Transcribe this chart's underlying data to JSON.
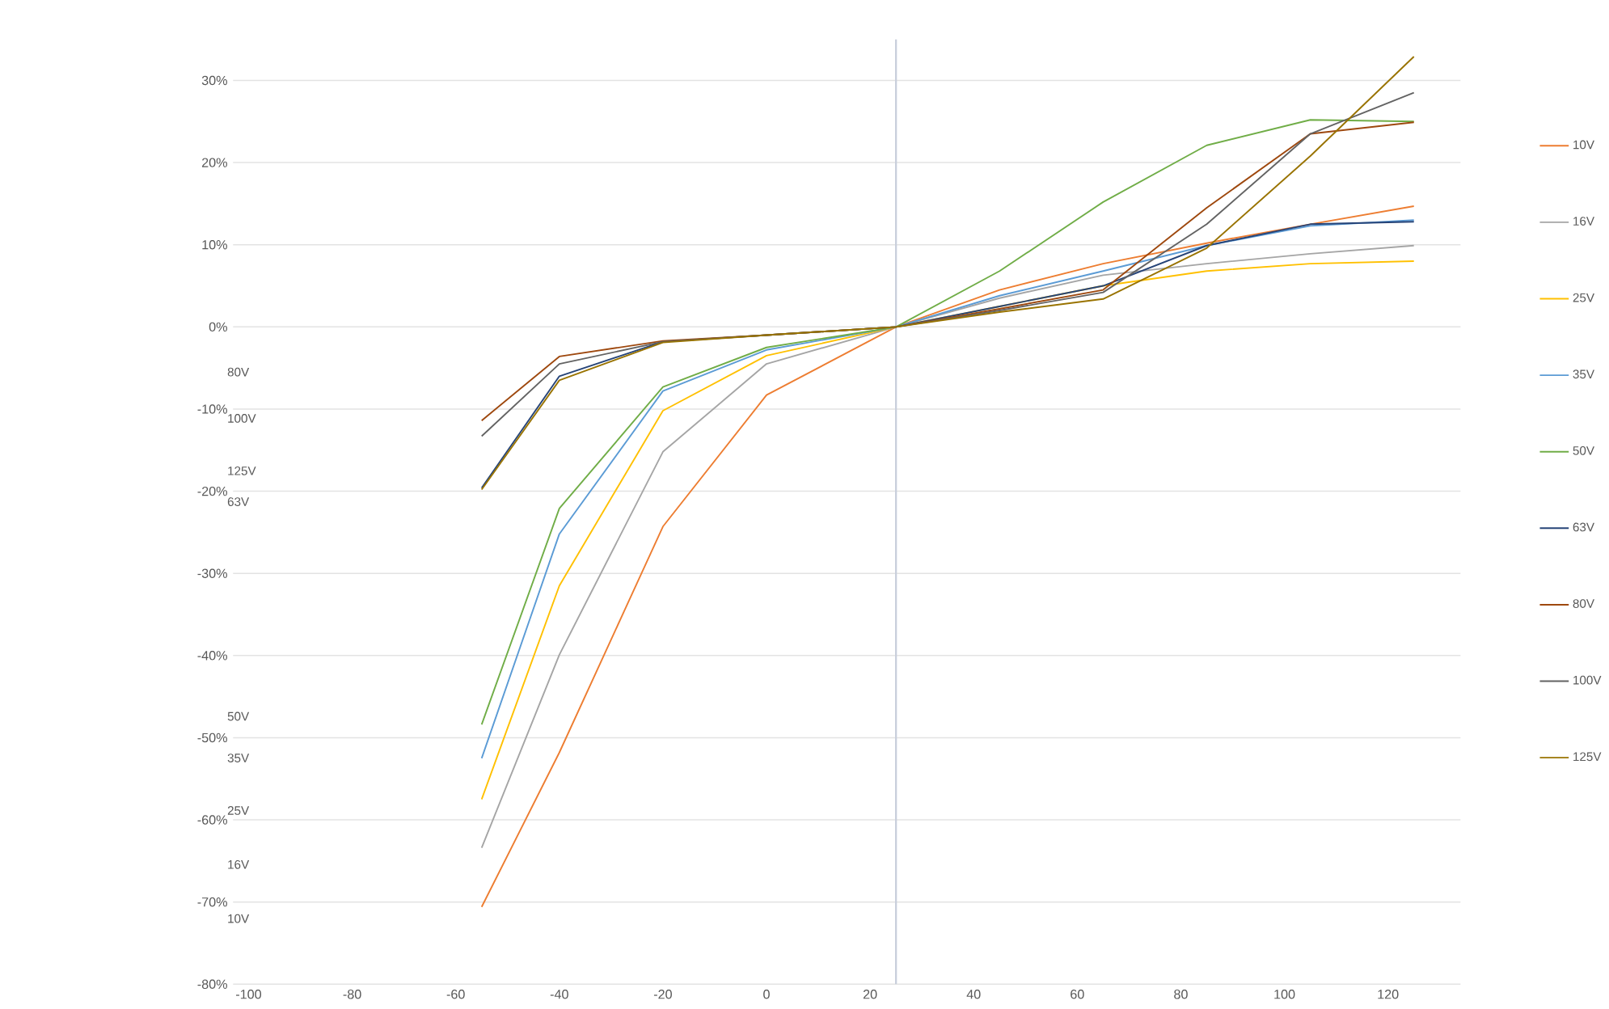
{
  "chart_data": {
    "type": "line",
    "x": [
      -55,
      -40,
      -20,
      0,
      25,
      45,
      65,
      85,
      105,
      125
    ],
    "series": [
      {
        "name": "10V",
        "color": "#ed7d31",
        "values": [
          -70.6,
          -51.8,
          -24.3,
          -8.3,
          0,
          4.5,
          7.7,
          10.2,
          12.5,
          14.7
        ]
      },
      {
        "name": "16V",
        "color": "#a5a5a5",
        "values": [
          -63.4,
          -39.9,
          -15.2,
          -4.5,
          0,
          3.5,
          6.3,
          7.7,
          8.9,
          9.9
        ]
      },
      {
        "name": "25V",
        "color": "#ffc000",
        "values": [
          -57.5,
          -31.5,
          -10.2,
          -3.5,
          0,
          2.5,
          5.0,
          6.8,
          7.7,
          8.0
        ]
      },
      {
        "name": "35V",
        "color": "#5b9bd5",
        "values": [
          -52.5,
          -25.2,
          -7.8,
          -2.8,
          0,
          3.8,
          6.8,
          9.9,
          12.3,
          13.0
        ]
      },
      {
        "name": "50V",
        "color": "#70ad47",
        "values": [
          -48.4,
          -22.1,
          -7.3,
          -2.5,
          0,
          6.8,
          15.2,
          22.1,
          25.2,
          25.0
        ]
      },
      {
        "name": "63V",
        "color": "#264478",
        "values": [
          -19.6,
          -6.0,
          -1.8,
          -1.0,
          0,
          2.5,
          5.0,
          9.9,
          12.5,
          12.8
        ]
      },
      {
        "name": "80V",
        "color": "#9e480e",
        "values": [
          -11.4,
          -3.6,
          -1.7,
          -1.0,
          0,
          2.2,
          4.5,
          14.5,
          23.5,
          24.9
        ]
      },
      {
        "name": "100V",
        "color": "#636363",
        "values": [
          -13.3,
          -4.5,
          -1.8,
          -1.0,
          0,
          2.0,
          4.2,
          12.5,
          23.5,
          28.5
        ]
      },
      {
        "name": "125V",
        "color": "#997300",
        "values": [
          -19.8,
          -6.5,
          -1.9,
          -1.0,
          0,
          1.8,
          3.4,
          9.6,
          20.8,
          32.9
        ]
      }
    ],
    "xlim": [
      -103,
      134
    ],
    "ylim": [
      -80,
      35
    ],
    "xticks": [
      -100,
      -80,
      -60,
      -40,
      -20,
      0,
      20,
      40,
      60,
      80,
      100,
      120
    ],
    "yticks": [
      {
        "value": -80,
        "label": "-80%"
      },
      {
        "value": -70,
        "label": "-70%"
      },
      {
        "value": -60,
        "label": "-60%"
      },
      {
        "value": -50,
        "label": "-50%"
      },
      {
        "value": -40,
        "label": "-40%"
      },
      {
        "value": -30,
        "label": "-30%"
      },
      {
        "value": -20,
        "label": "-20%"
      },
      {
        "value": -10,
        "label": "-10%"
      },
      {
        "value": 0,
        "label": "0%"
      },
      {
        "value": 10,
        "label": "10%"
      },
      {
        "value": 20,
        "label": "20%"
      },
      {
        "value": 30,
        "label": "30%"
      }
    ],
    "ref_lines": [
      {
        "axis": "x",
        "value": 25,
        "color": "#c9cfdc"
      }
    ],
    "annotations": [
      "80V",
      "100V",
      "125V",
      "63V",
      "50V",
      "35V",
      "25V",
      "16V",
      "10V"
    ],
    "grid": "y",
    "legend": "right",
    "marker": "none",
    "line_style": "solid"
  }
}
